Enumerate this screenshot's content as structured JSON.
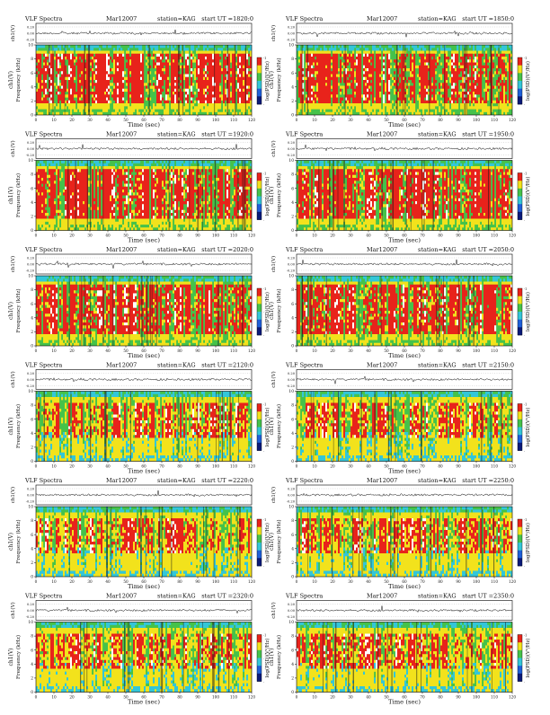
{
  "chart_data": [
    {
      "type": "heatmap",
      "title": "VLF Spectra",
      "date": "Mar12007",
      "station": "station=KAG",
      "start": "start UT =1820:0",
      "ch_label": "ch1(V)",
      "ch_ticks": [
        "0.20",
        "0.00",
        "-0.20"
      ],
      "ylabel": "Frequency (kHz)",
      "y_ticks": [
        "10",
        "8",
        "6",
        "4",
        "2",
        "0"
      ],
      "xlabel": "Time (sec)",
      "x_ticks": [
        "0",
        "10",
        "20",
        "30",
        "40",
        "50",
        "60",
        "70",
        "80",
        "90",
        "100",
        "110",
        "120"
      ],
      "xlim": [
        0,
        120
      ],
      "ylim": [
        0,
        10
      ],
      "cbar_label": "log(PSD)(V²/Hz)",
      "cbar_ticks": [
        "-1",
        "-",
        "-"
      ]
    },
    {
      "type": "heatmap",
      "title": "VLF Spectra",
      "date": "Mar12007",
      "station": "station=KAG",
      "start": "start UT =1850:0",
      "ch_label": "ch1(V)",
      "ch_ticks": [
        "0.20",
        "0.00",
        "-0.20"
      ],
      "ylabel": "Frequency (kHz)",
      "y_ticks": [
        "10",
        "8",
        "6",
        "4",
        "2",
        "0"
      ],
      "xlabel": "Time (sec)",
      "x_ticks": [
        "0",
        "10",
        "20",
        "30",
        "40",
        "50",
        "60",
        "70",
        "80",
        "90",
        "100",
        "110",
        "120"
      ],
      "xlim": [
        0,
        120
      ],
      "ylim": [
        0,
        10
      ],
      "cbar_label": "log(PSD)(V²/Hz)",
      "cbar_ticks": [
        "-1",
        "-",
        "-"
      ]
    },
    {
      "type": "heatmap",
      "title": "VLF Spectra",
      "date": "Mar12007",
      "station": "station=KAG",
      "start": "start UT =1920:0",
      "ch_label": "ch1(V)",
      "ch_ticks": [
        "0.20",
        "0.00",
        "-0.20"
      ],
      "ylabel": "Frequency (kHz)",
      "y_ticks": [
        "10",
        "8",
        "6",
        "4",
        "2",
        "0"
      ],
      "xlabel": "Time (sec)",
      "x_ticks": [
        "0",
        "10",
        "20",
        "30",
        "40",
        "50",
        "60",
        "70",
        "80",
        "90",
        "100",
        "110",
        "120"
      ],
      "xlim": [
        0,
        120
      ],
      "ylim": [
        0,
        10
      ],
      "cbar_label": "log(PSD)(V²/Hz)",
      "cbar_ticks": [
        "-1",
        "-",
        "-"
      ]
    },
    {
      "type": "heatmap",
      "title": "VLF Spectra",
      "date": "Mar12007",
      "station": "station=KAG",
      "start": "start UT =1950:0",
      "ch_label": "ch1(V)",
      "ch_ticks": [
        "0.20",
        "0.00",
        "-0.20"
      ],
      "ylabel": "Frequency (kHz)",
      "y_ticks": [
        "10",
        "8",
        "6",
        "4",
        "2",
        "0"
      ],
      "xlabel": "Time (sec)",
      "x_ticks": [
        "0",
        "10",
        "20",
        "30",
        "40",
        "50",
        "60",
        "70",
        "80",
        "90",
        "100",
        "110",
        "120"
      ],
      "xlim": [
        0,
        120
      ],
      "ylim": [
        0,
        10
      ],
      "cbar_label": "log(PSD)(V²/Hz)",
      "cbar_ticks": [
        "-1",
        "-",
        "-"
      ]
    },
    {
      "type": "heatmap",
      "title": "VLF Spectra",
      "date": "Mar12007",
      "station": "station=KAG",
      "start": "start UT =2020:0",
      "ch_label": "ch1(V)",
      "ch_ticks": [
        "0.20",
        "0.00",
        "-0.20"
      ],
      "ylabel": "Frequency (kHz)",
      "y_ticks": [
        "10",
        "8",
        "6",
        "4",
        "2",
        "0"
      ],
      "xlabel": "Time (sec)",
      "x_ticks": [
        "0",
        "10",
        "20",
        "30",
        "40",
        "50",
        "60",
        "70",
        "80",
        "90",
        "100",
        "110",
        "120"
      ],
      "xlim": [
        0,
        120
      ],
      "ylim": [
        0,
        10
      ],
      "cbar_label": "log(PSD)(V²/Hz)",
      "cbar_ticks": [
        "-1",
        "-",
        "-"
      ]
    },
    {
      "type": "heatmap",
      "title": "VLF Spectra",
      "date": "Mar12007",
      "station": "station=KAG",
      "start": "start UT =2050:0",
      "ch_label": "ch1(V)",
      "ch_ticks": [
        "0.20",
        "0.00",
        "-0.20"
      ],
      "ylabel": "Frequency (kHz)",
      "y_ticks": [
        "10",
        "8",
        "6",
        "4",
        "2",
        "0"
      ],
      "xlabel": "Time (sec)",
      "x_ticks": [
        "0",
        "10",
        "20",
        "30",
        "40",
        "50",
        "60",
        "70",
        "80",
        "90",
        "100",
        "110",
        "120"
      ],
      "xlim": [
        0,
        120
      ],
      "ylim": [
        0,
        10
      ],
      "cbar_label": "log(PSD)(V²/Hz)",
      "cbar_ticks": [
        "-1",
        "-",
        "-"
      ]
    },
    {
      "type": "heatmap",
      "title": "VLF Spectra",
      "date": "Mar12007",
      "station": "station=KAG",
      "start": "start UT =2120:0",
      "ch_label": "ch1(V)",
      "ch_ticks": [
        "0.20",
        "0.00",
        "-0.20"
      ],
      "ylabel": "Frequency (kHz)",
      "y_ticks": [
        "10",
        "8",
        "6",
        "4",
        "2",
        "0"
      ],
      "xlabel": "Time (sec)",
      "x_ticks": [
        "0",
        "10",
        "20",
        "30",
        "40",
        "50",
        "60",
        "70",
        "80",
        "90",
        "100",
        "110",
        "120"
      ],
      "xlim": [
        0,
        120
      ],
      "ylim": [
        0,
        10
      ],
      "cbar_label": "log(PSD)(V²/Hz)",
      "cbar_ticks": [
        "-1",
        "-",
        "-"
      ]
    },
    {
      "type": "heatmap",
      "title": "VLF Spectra",
      "date": "Mar12007",
      "station": "station=KAG",
      "start": "start UT =2150:0",
      "ch_label": "ch1(V)",
      "ch_ticks": [
        "0.20",
        "0.00",
        "-0.20"
      ],
      "ylabel": "Frequency (kHz)",
      "y_ticks": [
        "10",
        "8",
        "6",
        "4",
        "2",
        "0"
      ],
      "xlabel": "Time (sec)",
      "x_ticks": [
        "0",
        "10",
        "20",
        "30",
        "40",
        "50",
        "60",
        "70",
        "80",
        "90",
        "100",
        "110",
        "120"
      ],
      "xlim": [
        0,
        120
      ],
      "ylim": [
        0,
        10
      ],
      "cbar_label": "log(PSD)(V²/Hz)",
      "cbar_ticks": [
        "-1",
        "-",
        "-"
      ]
    },
    {
      "type": "heatmap",
      "title": "VLF Spectra",
      "date": "Mar12007",
      "station": "station=KAG",
      "start": "start UT =2220:0",
      "ch_label": "ch1(V)",
      "ch_ticks": [
        "0.20",
        "0.00",
        "-0.20"
      ],
      "ylabel": "Frequency (kHz)",
      "y_ticks": [
        "10",
        "8",
        "6",
        "4",
        "2",
        "0"
      ],
      "xlabel": "Time (sec)",
      "x_ticks": [
        "0",
        "10",
        "20",
        "30",
        "40",
        "50",
        "60",
        "70",
        "80",
        "90",
        "100",
        "110",
        "120"
      ],
      "xlim": [
        0,
        120
      ],
      "ylim": [
        0,
        10
      ],
      "cbar_label": "log(PSD)(V²/Hz)",
      "cbar_ticks": [
        "-1",
        "-",
        "-"
      ]
    },
    {
      "type": "heatmap",
      "title": "VLF Spectra",
      "date": "Mar12007",
      "station": "station=KAG",
      "start": "start UT =2250:0",
      "ch_label": "ch1(V)",
      "ch_ticks": [
        "0.20",
        "0.00",
        "-0.20"
      ],
      "ylabel": "Frequency (kHz)",
      "y_ticks": [
        "10",
        "8",
        "6",
        "4",
        "2",
        "0"
      ],
      "xlabel": "Time (sec)",
      "x_ticks": [
        "0",
        "10",
        "20",
        "30",
        "40",
        "50",
        "60",
        "70",
        "80",
        "90",
        "100",
        "110",
        "120"
      ],
      "xlim": [
        0,
        120
      ],
      "ylim": [
        0,
        10
      ],
      "cbar_label": "log(PSD)(V²/Hz)",
      "cbar_ticks": [
        "-1",
        "-",
        "-"
      ]
    },
    {
      "type": "heatmap",
      "title": "VLF Spectra",
      "date": "Mar12007",
      "station": "station=KAG",
      "start": "start UT =2320:0",
      "ch_label": "ch1(V)",
      "ch_ticks": [
        "0.20",
        "0.00",
        "-0.20"
      ],
      "ylabel": "Frequency (kHz)",
      "y_ticks": [
        "10",
        "8",
        "6",
        "4",
        "2",
        "0"
      ],
      "xlabel": "Time (sec)",
      "x_ticks": [
        "0",
        "10",
        "20",
        "30",
        "40",
        "50",
        "60",
        "70",
        "80",
        "90",
        "100",
        "110",
        "120"
      ],
      "xlim": [
        0,
        120
      ],
      "ylim": [
        0,
        10
      ],
      "cbar_label": "log(PSD)(V²/Hz)",
      "cbar_ticks": [
        "-1",
        "-",
        "-"
      ]
    },
    {
      "type": "heatmap",
      "title": "VLF Spectra",
      "date": "Mar12007",
      "station": "station=KAG",
      "start": "start UT =2350:0",
      "ch_label": "ch1(V)",
      "ch_ticks": [
        "0.20",
        "0.00",
        "-0.20"
      ],
      "ylabel": "Frequency (kHz)",
      "y_ticks": [
        "10",
        "8",
        "6",
        "4",
        "2",
        "0"
      ],
      "xlabel": "Time (sec)",
      "x_ticks": [
        "0",
        "10",
        "20",
        "30",
        "40",
        "50",
        "60",
        "70",
        "80",
        "90",
        "100",
        "110",
        "120"
      ],
      "xlim": [
        0,
        120
      ],
      "ylim": [
        0,
        10
      ],
      "cbar_label": "log(PSD)(V²/Hz)",
      "cbar_ticks": [
        "-1",
        "-",
        "-"
      ]
    }
  ],
  "colors": {
    "red": "#e8231b",
    "yellow": "#f2e21c",
    "green": "#45c24a",
    "cyan": "#33c6d8",
    "blue": "#1f5fd9",
    "navy": "#0a1a7a",
    "white": "#ffffff"
  }
}
